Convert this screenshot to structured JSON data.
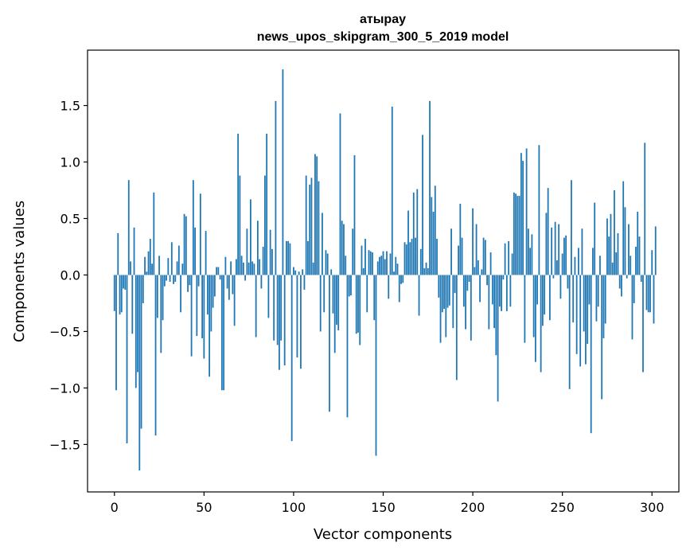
{
  "chart_data": {
    "type": "bar",
    "title_lines": [
      "атырау",
      "news_upos_skipgram_300_5_2019 model"
    ],
    "xlabel": "Vector components",
    "ylabel": "Components values",
    "xlim": [
      -15,
      315
    ],
    "ylim": [
      -1.92,
      1.99
    ],
    "xticks": [
      0,
      50,
      100,
      150,
      200,
      250,
      300
    ],
    "yticks": [
      -1.5,
      -1.0,
      -0.5,
      0.0,
      0.5,
      1.0,
      1.5
    ],
    "ytick_labels": [
      "−1.5",
      "−1.0",
      "−0.5",
      "0.0",
      "0.5",
      "1.0",
      "1.5"
    ],
    "bar_color": "#1f77b4",
    "series": [
      {
        "name": "атырау",
        "x_start": 0,
        "values": [
          -0.32,
          -1.02,
          0.37,
          -0.35,
          -0.33,
          -0.12,
          -0.13,
          -1.49,
          0.84,
          0.12,
          -0.52,
          0.42,
          -1.0,
          -0.86,
          -1.73,
          -1.36,
          -0.25,
          0.16,
          0.03,
          0.21,
          0.32,
          0.1,
          0.73,
          -1.42,
          -0.38,
          0.17,
          -0.69,
          -0.4,
          -0.1,
          -0.05,
          0.15,
          -0.06,
          0.29,
          -0.08,
          -0.06,
          0.12,
          0.26,
          -0.33,
          0.1,
          0.54,
          0.52,
          -0.15,
          -0.09,
          -0.72,
          0.84,
          0.42,
          -0.54,
          -0.1,
          0.72,
          -0.56,
          -0.74,
          0.39,
          -0.35,
          -0.9,
          -0.5,
          -0.29,
          -0.19,
          0.07,
          0.07,
          -0.04,
          -1.02,
          -1.02,
          0.16,
          -0.12,
          -0.22,
          0.12,
          -0.17,
          -0.45,
          0.14,
          1.25,
          0.88,
          0.17,
          0.11,
          -0.05,
          0.41,
          0.11,
          0.67,
          0.12,
          0.1,
          -0.55,
          0.48,
          0.14,
          -0.12,
          0.25,
          0.88,
          1.25,
          -0.38,
          0.4,
          0.23,
          -0.58,
          1.54,
          -0.62,
          -0.84,
          -0.58,
          1.82,
          -0.8,
          0.3,
          0.3,
          0.28,
          -1.47,
          0.07,
          0.04,
          -0.73,
          0.03,
          -0.83,
          0.05,
          -0.13,
          0.88,
          0.3,
          0.8,
          0.86,
          0.11,
          1.07,
          1.05,
          0.83,
          -0.5,
          0.55,
          -0.33,
          0.22,
          0.19,
          -1.21,
          0.05,
          -0.34,
          -0.69,
          -0.44,
          -0.49,
          1.43,
          0.48,
          0.45,
          0.17,
          -1.26,
          -0.19,
          -0.18,
          0.41,
          1.06,
          -0.52,
          -0.51,
          -0.62,
          0.26,
          0.06,
          0.32,
          -0.33,
          0.22,
          0.21,
          0.2,
          -0.4,
          -1.6,
          0.12,
          0.16,
          0.17,
          0.21,
          0.14,
          0.21,
          -0.21,
          0.19,
          1.49,
          0.03,
          0.16,
          0.1,
          -0.24,
          -0.08,
          -0.07,
          0.29,
          0.27,
          0.57,
          0.29,
          0.32,
          0.73,
          0.33,
          0.76,
          -0.36,
          0.23,
          1.24,
          0.06,
          0.11,
          0.06,
          1.54,
          0.69,
          0.56,
          0.79,
          0.32,
          -0.2,
          -0.6,
          -0.33,
          -0.3,
          -0.55,
          -0.29,
          -0.27,
          0.41,
          -0.47,
          -0.16,
          -0.93,
          0.26,
          0.63,
          0.33,
          -0.28,
          -0.48,
          -0.14,
          -0.06,
          -0.58,
          0.59,
          0.07,
          0.45,
          0.13,
          -0.24,
          0.05,
          0.33,
          0.31,
          -0.09,
          -0.48,
          0.2,
          -0.26,
          -0.47,
          -0.71,
          -1.12,
          -0.28,
          -0.32,
          -0.04,
          0.28,
          -0.32,
          0.3,
          -0.28,
          0.19,
          0.73,
          0.72,
          0.7,
          0.7,
          1.08,
          1.01,
          -0.6,
          1.12,
          0.41,
          0.24,
          0.36,
          -0.55,
          -0.77,
          -0.26,
          1.15,
          -0.86,
          -0.45,
          -0.35,
          0.55,
          0.77,
          -0.4,
          0.42,
          -0.03,
          0.47,
          0.13,
          0.45,
          -0.21,
          0.19,
          0.33,
          0.35,
          -0.12,
          -1.01,
          0.84,
          -0.42,
          0.16,
          -0.7,
          0.24,
          -0.81,
          0.41,
          -0.5,
          -0.79,
          -0.61,
          -0.26,
          -1.4,
          0.24,
          0.64,
          -0.41,
          -0.28,
          0.17,
          -1.1,
          -0.56,
          -0.43,
          0.5,
          0.34,
          0.54,
          0.11,
          0.75,
          0.2,
          0.37,
          -0.12,
          -0.19,
          0.83,
          0.6,
          -0.03,
          0.45,
          0.17,
          -0.57,
          -0.25,
          0.25,
          0.56,
          0.34,
          -0.06,
          -0.86,
          1.17,
          -0.31,
          -0.33,
          -0.33,
          0.22,
          -0.43,
          0.43
        ]
      }
    ]
  }
}
